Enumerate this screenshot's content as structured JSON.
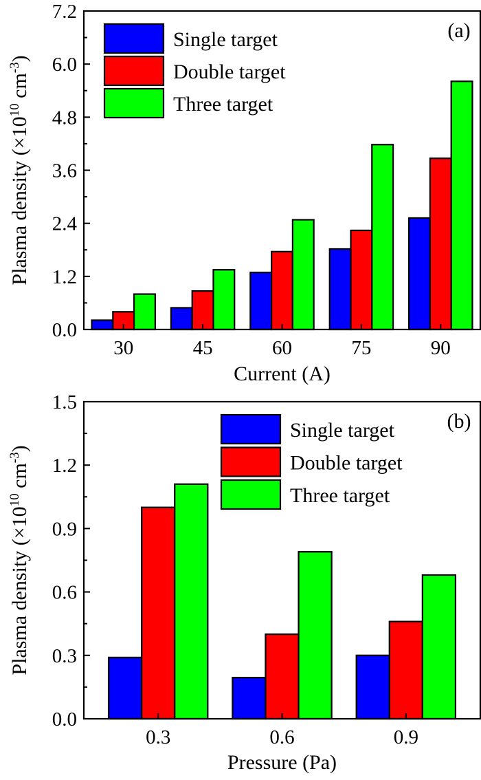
{
  "chart_data": [
    {
      "type": "bar",
      "panel_label": "(a)",
      "xlabel": "Current (A)",
      "ylabel": "Plasma density (×10",
      "ylabel_sup1": "10",
      "ylabel_mid": " cm",
      "ylabel_sup2": "-3",
      "ylabel_end": ")",
      "categories": [
        "30",
        "45",
        "60",
        "75",
        "90"
      ],
      "x_values": [
        30,
        45,
        60,
        75,
        90
      ],
      "xlim": [
        22.5,
        97.5
      ],
      "ylim": [
        0,
        7.2
      ],
      "yticks": [
        "0.0",
        "1.2",
        "2.4",
        "3.6",
        "4.8",
        "6.0",
        "7.2"
      ],
      "legend_position": "top-left",
      "series": [
        {
          "name": "Single target",
          "color": "#0000ff",
          "values": [
            0.21,
            0.49,
            1.29,
            1.82,
            2.52
          ]
        },
        {
          "name": "Double target",
          "color": "#ff0000",
          "values": [
            0.4,
            0.87,
            1.76,
            2.24,
            3.87
          ]
        },
        {
          "name": "Three target",
          "color": "#00ff00",
          "values": [
            0.8,
            1.35,
            2.48,
            4.18,
            5.61
          ]
        }
      ]
    },
    {
      "type": "bar",
      "panel_label": "(b)",
      "xlabel": "Pressure (Pa)",
      "ylabel": "Plasma density (×10",
      "ylabel_sup1": "10",
      "ylabel_mid": " cm",
      "ylabel_sup2": "-3",
      "ylabel_end": ")",
      "categories": [
        "0.3",
        "0.6",
        "0.9"
      ],
      "x_values": [
        0.3,
        0.6,
        0.9
      ],
      "xlim": [
        0.12,
        1.08
      ],
      "ylim": [
        0,
        1.5
      ],
      "yticks": [
        "0.0",
        "0.3",
        "0.6",
        "0.9",
        "1.2",
        "1.5"
      ],
      "legend_position": "top-right",
      "series": [
        {
          "name": "Single target",
          "color": "#0000ff",
          "values": [
            0.29,
            0.195,
            0.3
          ]
        },
        {
          "name": "Double target",
          "color": "#ff0000",
          "values": [
            1.0,
            0.4,
            0.46
          ]
        },
        {
          "name": "Three target",
          "color": "#00ff00",
          "values": [
            1.11,
            0.79,
            0.68
          ]
        }
      ]
    }
  ]
}
